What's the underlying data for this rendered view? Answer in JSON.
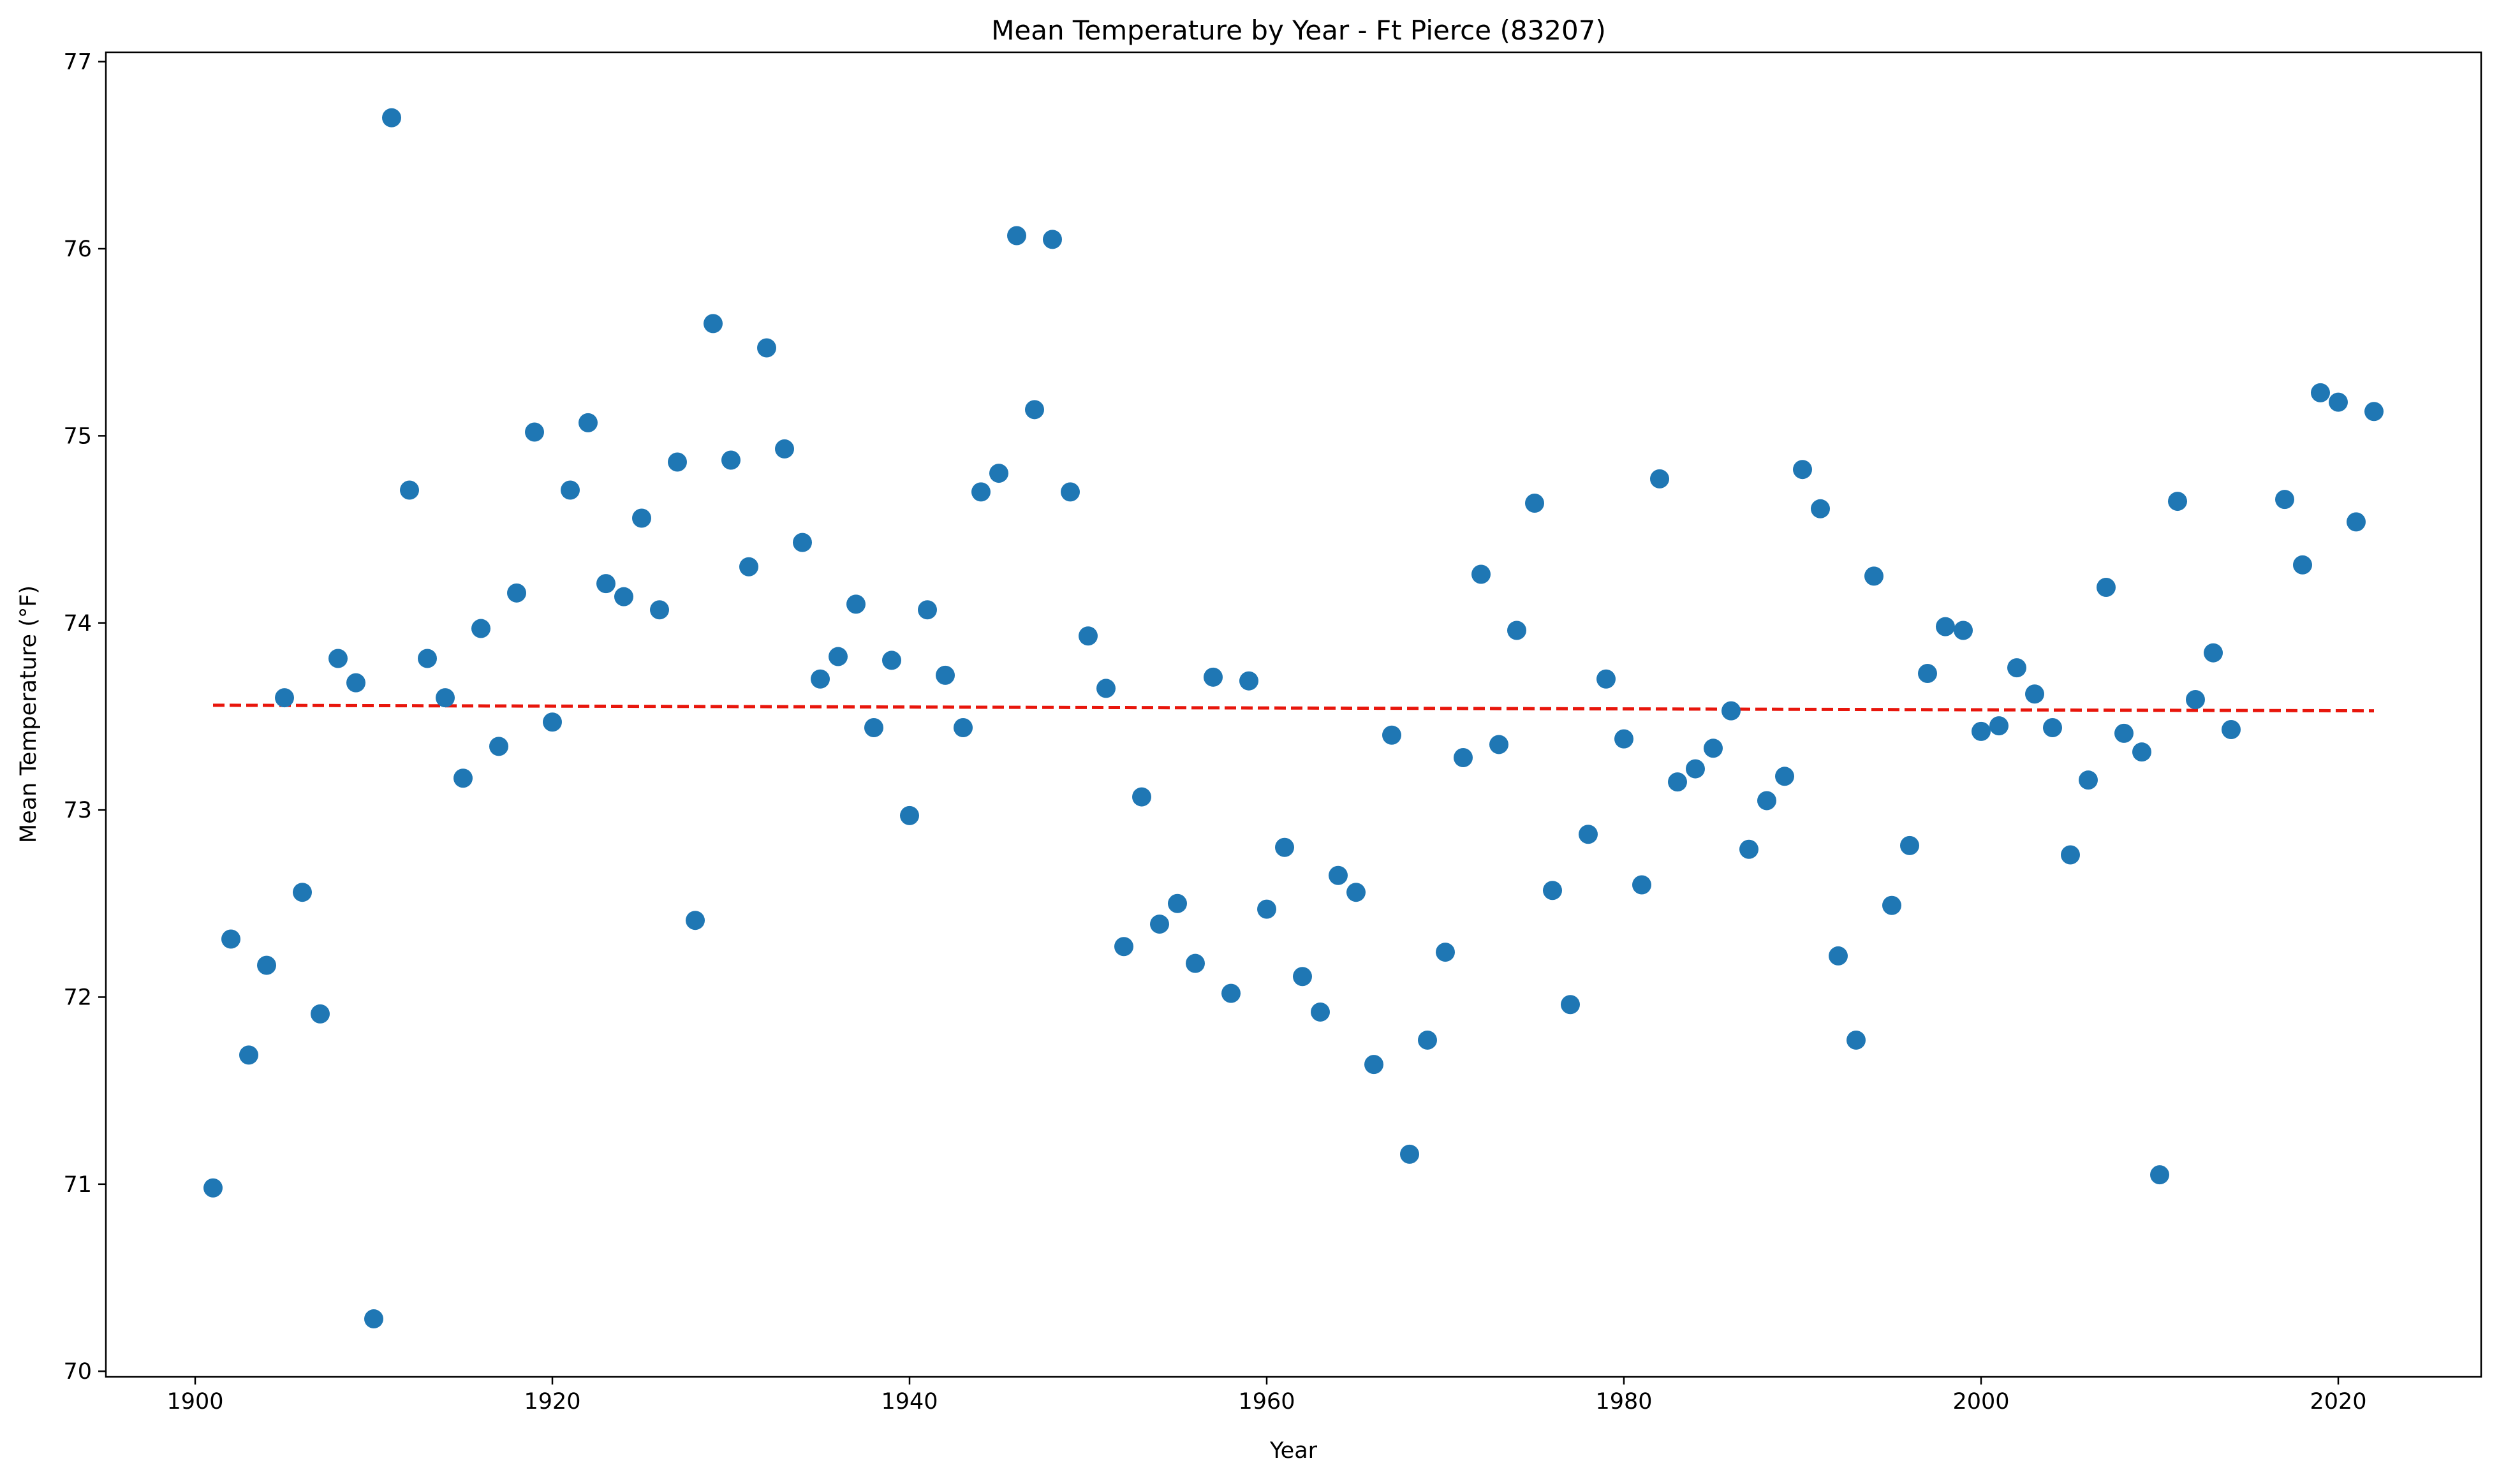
{
  "chart_data": {
    "type": "scatter",
    "title": "Mean Temperature by Year - Ft Pierce (83207)",
    "xlabel": "Year",
    "ylabel": "Mean Temperature (°F)",
    "xlim": [
      1895,
      2028
    ],
    "ylim": [
      69.97,
      77.05
    ],
    "xticks": [
      1900,
      1920,
      1940,
      1960,
      1980,
      2000,
      2020
    ],
    "yticks": [
      70,
      71,
      72,
      73,
      74,
      75,
      76,
      77
    ],
    "grid": false,
    "point_color": "#1f77b4",
    "trend_color": "#e8160c",
    "trend_line": {
      "x": [
        1901,
        2022
      ],
      "y": [
        73.56,
        73.53
      ]
    },
    "points": [
      {
        "x": 1901,
        "y": 70.98
      },
      {
        "x": 1902,
        "y": 72.31
      },
      {
        "x": 1903,
        "y": 71.69
      },
      {
        "x": 1904,
        "y": 72.17
      },
      {
        "x": 1905,
        "y": 73.6
      },
      {
        "x": 1906,
        "y": 72.56
      },
      {
        "x": 1907,
        "y": 71.91
      },
      {
        "x": 1908,
        "y": 73.81
      },
      {
        "x": 1909,
        "y": 73.68
      },
      {
        "x": 1910,
        "y": 70.28
      },
      {
        "x": 1911,
        "y": 76.7
      },
      {
        "x": 1912,
        "y": 74.71
      },
      {
        "x": 1913,
        "y": 73.81
      },
      {
        "x": 1914,
        "y": 73.6
      },
      {
        "x": 1915,
        "y": 73.17
      },
      {
        "x": 1916,
        "y": 73.97
      },
      {
        "x": 1917,
        "y": 73.34
      },
      {
        "x": 1918,
        "y": 74.16
      },
      {
        "x": 1919,
        "y": 75.02
      },
      {
        "x": 1920,
        "y": 73.47
      },
      {
        "x": 1921,
        "y": 74.71
      },
      {
        "x": 1922,
        "y": 75.07
      },
      {
        "x": 1923,
        "y": 74.21
      },
      {
        "x": 1924,
        "y": 74.14
      },
      {
        "x": 1925,
        "y": 74.56
      },
      {
        "x": 1926,
        "y": 74.07
      },
      {
        "x": 1927,
        "y": 74.86
      },
      {
        "x": 1928,
        "y": 72.41
      },
      {
        "x": 1929,
        "y": 75.6
      },
      {
        "x": 1930,
        "y": 74.87
      },
      {
        "x": 1931,
        "y": 74.3
      },
      {
        "x": 1932,
        "y": 75.47
      },
      {
        "x": 1933,
        "y": 74.93
      },
      {
        "x": 1934,
        "y": 74.43
      },
      {
        "x": 1935,
        "y": 73.7
      },
      {
        "x": 1936,
        "y": 73.82
      },
      {
        "x": 1937,
        "y": 74.1
      },
      {
        "x": 1938,
        "y": 73.44
      },
      {
        "x": 1939,
        "y": 73.8
      },
      {
        "x": 1940,
        "y": 72.97
      },
      {
        "x": 1941,
        "y": 74.07
      },
      {
        "x": 1942,
        "y": 73.72
      },
      {
        "x": 1943,
        "y": 73.44
      },
      {
        "x": 1944,
        "y": 74.7
      },
      {
        "x": 1945,
        "y": 74.8
      },
      {
        "x": 1946,
        "y": 76.07
      },
      {
        "x": 1947,
        "y": 75.14
      },
      {
        "x": 1948,
        "y": 76.05
      },
      {
        "x": 1949,
        "y": 74.7
      },
      {
        "x": 1950,
        "y": 73.93
      },
      {
        "x": 1951,
        "y": 73.65
      },
      {
        "x": 1952,
        "y": 72.27
      },
      {
        "x": 1953,
        "y": 73.07
      },
      {
        "x": 1954,
        "y": 72.39
      },
      {
        "x": 1955,
        "y": 72.5
      },
      {
        "x": 1956,
        "y": 72.18
      },
      {
        "x": 1957,
        "y": 73.71
      },
      {
        "x": 1958,
        "y": 72.02
      },
      {
        "x": 1959,
        "y": 73.69
      },
      {
        "x": 1960,
        "y": 72.47
      },
      {
        "x": 1961,
        "y": 72.8
      },
      {
        "x": 1962,
        "y": 72.11
      },
      {
        "x": 1963,
        "y": 71.92
      },
      {
        "x": 1964,
        "y": 72.65
      },
      {
        "x": 1965,
        "y": 72.56
      },
      {
        "x": 1966,
        "y": 71.64
      },
      {
        "x": 1967,
        "y": 73.4
      },
      {
        "x": 1968,
        "y": 71.16
      },
      {
        "x": 1969,
        "y": 71.77
      },
      {
        "x": 1970,
        "y": 72.24
      },
      {
        "x": 1971,
        "y": 73.28
      },
      {
        "x": 1972,
        "y": 74.26
      },
      {
        "x": 1973,
        "y": 73.35
      },
      {
        "x": 1974,
        "y": 73.96
      },
      {
        "x": 1975,
        "y": 74.64
      },
      {
        "x": 1976,
        "y": 72.57
      },
      {
        "x": 1977,
        "y": 71.96
      },
      {
        "x": 1978,
        "y": 72.87
      },
      {
        "x": 1979,
        "y": 73.7
      },
      {
        "x": 1980,
        "y": 73.38
      },
      {
        "x": 1981,
        "y": 72.6
      },
      {
        "x": 1982,
        "y": 74.77
      },
      {
        "x": 1983,
        "y": 73.15
      },
      {
        "x": 1984,
        "y": 73.22
      },
      {
        "x": 1985,
        "y": 73.33
      },
      {
        "x": 1986,
        "y": 73.53
      },
      {
        "x": 1987,
        "y": 72.79
      },
      {
        "x": 1988,
        "y": 73.05
      },
      {
        "x": 1989,
        "y": 73.18
      },
      {
        "x": 1990,
        "y": 74.82
      },
      {
        "x": 1991,
        "y": 74.61
      },
      {
        "x": 1992,
        "y": 72.22
      },
      {
        "x": 1993,
        "y": 71.77
      },
      {
        "x": 1994,
        "y": 74.25
      },
      {
        "x": 1995,
        "y": 72.49
      },
      {
        "x": 1996,
        "y": 72.81
      },
      {
        "x": 1997,
        "y": 73.73
      },
      {
        "x": 1998,
        "y": 73.98
      },
      {
        "x": 1999,
        "y": 73.96
      },
      {
        "x": 2000,
        "y": 73.42
      },
      {
        "x": 2001,
        "y": 73.45
      },
      {
        "x": 2002,
        "y": 73.76
      },
      {
        "x": 2003,
        "y": 73.62
      },
      {
        "x": 2004,
        "y": 73.44
      },
      {
        "x": 2005,
        "y": 72.76
      },
      {
        "x": 2006,
        "y": 73.16
      },
      {
        "x": 2007,
        "y": 74.19
      },
      {
        "x": 2008,
        "y": 73.41
      },
      {
        "x": 2009,
        "y": 73.31
      },
      {
        "x": 2010,
        "y": 71.05
      },
      {
        "x": 2011,
        "y": 74.65
      },
      {
        "x": 2012,
        "y": 73.59
      },
      {
        "x": 2013,
        "y": 73.84
      },
      {
        "x": 2014,
        "y": 73.43
      },
      {
        "x": 2017,
        "y": 74.66
      },
      {
        "x": 2018,
        "y": 74.31
      },
      {
        "x": 2019,
        "y": 75.23
      },
      {
        "x": 2020,
        "y": 75.18
      },
      {
        "x": 2021,
        "y": 74.54
      },
      {
        "x": 2022,
        "y": 75.13
      }
    ]
  }
}
